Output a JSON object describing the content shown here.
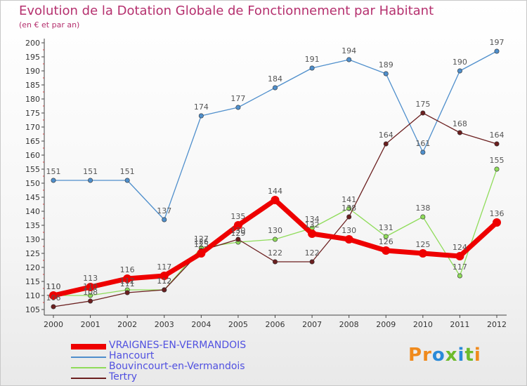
{
  "title": "Evolution de la Dotation Globale de Fonctionnement par Habitant",
  "subtitle": "(en € et par an)",
  "logo_text": "Proxiti",
  "chart_data": {
    "type": "line",
    "x": [
      "2000",
      "2001",
      "2002",
      "2003",
      "2004",
      "2005",
      "2006",
      "2007",
      "2008",
      "2009",
      "2010",
      "2011",
      "2012"
    ],
    "ylim": [
      105,
      200
    ],
    "yticks": [
      105,
      110,
      115,
      120,
      125,
      130,
      135,
      140,
      145,
      150,
      155,
      160,
      165,
      170,
      175,
      180,
      185,
      190,
      195,
      200
    ],
    "grid": false,
    "legend_position": "bottom-left",
    "series": [
      {
        "name": "VRAIGNES-EN-VERMANDOIS",
        "color": "#ee0000",
        "values": [
          110,
          113,
          116,
          117,
          125,
          135,
          144,
          132,
          130,
          126,
          125,
          124,
          136
        ]
      },
      {
        "name": "Hancourt",
        "color": "#4f8fcc",
        "values": [
          151,
          151,
          151,
          137,
          174,
          177,
          184,
          191,
          194,
          189,
          161,
          190,
          197
        ]
      },
      {
        "name": "Bouvincourt-en-Vermandois",
        "color": "#8fdc5a",
        "values": [
          110,
          110,
          112,
          112,
          127,
          129,
          130,
          134,
          141,
          131,
          138,
          117,
          155
        ]
      },
      {
        "name": "Tertry",
        "color": "#6b1f1f",
        "values": [
          106,
          108,
          111,
          112,
          126,
          130,
          122,
          122,
          138,
          164,
          175,
          168,
          164
        ]
      }
    ]
  }
}
